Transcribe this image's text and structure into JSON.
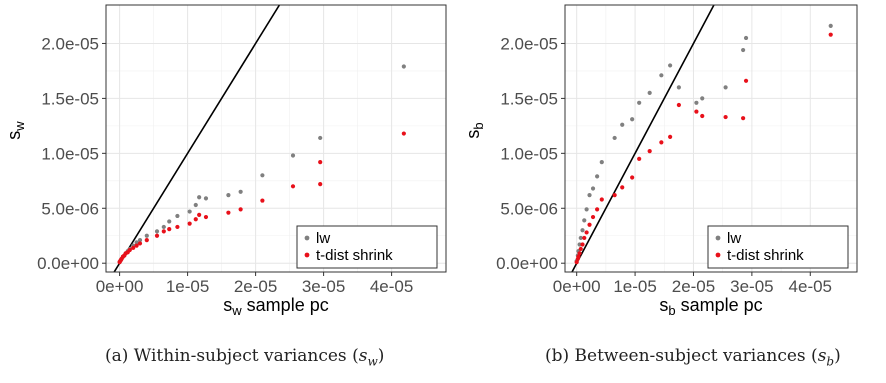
{
  "chart_data": [
    {
      "type": "scatter",
      "xlabel": "s_w sample pc",
      "ylabel": "s_w",
      "xlabel_sub": "w",
      "ylabel_sub": "w",
      "xlabel_main": "s",
      "xlabel_rest": " sample pc",
      "ylabel_main": "s",
      "xlim": [
        -2e-06,
        4.8e-05
      ],
      "ylim": [
        -8e-07,
        2.35e-05
      ],
      "xticks": [
        0,
        1e-05,
        2e-05,
        3e-05,
        4e-05
      ],
      "xtick_labels": [
        "0e+00",
        "1e-05",
        "2e-05",
        "3e-05",
        "4e-05"
      ],
      "yticks": [
        0,
        5e-06,
        1e-05,
        1.5e-05,
        2e-05
      ],
      "ytick_labels": [
        "0.0e+00",
        "5.0e-06",
        "1.0e-05",
        "1.5e-05",
        "2.0e-05"
      ],
      "grid": true,
      "legend_position": "bottom-right",
      "reference_line": "y = x",
      "caption": "(a) Within-subject variances (s_w)",
      "caption_text": "(a) Within-subject variances (",
      "caption_var": "s",
      "caption_sub": "w",
      "caption_close": ")",
      "series": [
        {
          "name": "lw",
          "color": "#808080",
          "x": [
            0,
            1e-07,
            2e-07,
            3e-07,
            5e-07,
            7e-07,
            9e-07,
            1.2e-06,
            1.5e-06,
            2e-06,
            2.5e-06,
            3e-06,
            4e-06,
            5.5e-06,
            6.5e-06,
            7.3e-06,
            8.5e-06,
            1.03e-05,
            1.12e-05,
            1.17e-05,
            1.27e-05,
            1.6e-05,
            1.78e-05,
            2.1e-05,
            2.55e-05,
            2.95e-05,
            4.18e-05
          ],
          "y": [
            1e-07,
            2e-07,
            3e-07,
            4e-07,
            6e-07,
            7e-07,
            9e-07,
            1.1e-06,
            1.3e-06,
            1.6e-06,
            1.9e-06,
            2.1e-06,
            2.5e-06,
            2.9e-06,
            3.3e-06,
            3.8e-06,
            4.3e-06,
            4.7e-06,
            5.3e-06,
            6e-06,
            5.9e-06,
            6.2e-06,
            6.5e-06,
            8e-06,
            9.8e-06,
            1.14e-05,
            1.79e-05
          ]
        },
        {
          "name": "t-dist shrink",
          "color": "#e8101a",
          "x": [
            0,
            1e-07,
            2e-07,
            3e-07,
            5e-07,
            7e-07,
            9e-07,
            1.2e-06,
            1.5e-06,
            2e-06,
            2.5e-06,
            3e-06,
            4e-06,
            5.5e-06,
            6.5e-06,
            7.3e-06,
            8.5e-06,
            1.03e-05,
            1.12e-05,
            1.17e-05,
            1.27e-05,
            1.6e-05,
            1.78e-05,
            2.1e-05,
            2.55e-05,
            2.95e-05,
            2.95e-05,
            4.18e-05
          ],
          "y": [
            1e-07,
            2e-07,
            3e-07,
            4e-07,
            6e-07,
            7e-07,
            9e-07,
            1e-06,
            1.2e-06,
            1.4e-06,
            1.6e-06,
            1.8e-06,
            2.1e-06,
            2.5e-06,
            2.9e-06,
            3.1e-06,
            3.3e-06,
            3.6e-06,
            4e-06,
            4.4e-06,
            4.2e-06,
            4.6e-06,
            4.9e-06,
            5.7e-06,
            7e-06,
            7.2e-06,
            9.2e-06,
            1.18e-05
          ]
        }
      ]
    },
    {
      "type": "scatter",
      "xlabel": "s_b sample pc",
      "ylabel": "s_b",
      "xlabel_sub": "b",
      "ylabel_sub": "b",
      "xlabel_main": "s",
      "xlabel_rest": " sample pc",
      "ylabel_main": "s",
      "xlim": [
        -2e-06,
        4.8e-05
      ],
      "ylim": [
        -8e-07,
        2.35e-05
      ],
      "xticks": [
        0,
        1e-05,
        2e-05,
        3e-05,
        4e-05
      ],
      "xtick_labels": [
        "0e+00",
        "1e-05",
        "2e-05",
        "3e-05",
        "4e-05"
      ],
      "yticks": [
        0,
        5e-06,
        1e-05,
        1.5e-05,
        2e-05
      ],
      "ytick_labels": [
        "0.0e+00",
        "5.0e-06",
        "1.0e-05",
        "1.5e-05",
        "2.0e-05"
      ],
      "grid": true,
      "legend_position": "bottom-right",
      "reference_line": "y = x",
      "caption": "(b) Between-subject variances (s_b)",
      "caption_text": "(b) Between-subject variances (",
      "caption_var": "s",
      "caption_sub": "b",
      "caption_close": ")",
      "series": [
        {
          "name": "lw",
          "color": "#808080",
          "x": [
            0,
            2e-07,
            3e-07,
            5e-07,
            7e-07,
            1e-06,
            1.3e-06,
            1.7e-06,
            2.2e-06,
            2.8e-06,
            3.5e-06,
            4.3e-06,
            6.5e-06,
            7.8e-06,
            9.5e-06,
            1.07e-05,
            1.25e-05,
            1.45e-05,
            1.6e-05,
            1.75e-05,
            2.05e-05,
            2.15e-05,
            2.55e-05,
            2.85e-05,
            2.9e-05,
            4.35e-05
          ],
          "y": [
            2e-07,
            7e-07,
            1.1e-06,
            1.7e-06,
            2.3e-06,
            3e-06,
            3.9e-06,
            4.9e-06,
            6.2e-06,
            6.8e-06,
            7.9e-06,
            9.2e-06,
            1.14e-05,
            1.26e-05,
            1.31e-05,
            1.46e-05,
            1.55e-05,
            1.71e-05,
            1.8e-05,
            1.6e-05,
            1.46e-05,
            1.5e-05,
            1.6e-05,
            1.94e-05,
            2.05e-05,
            2.16e-05
          ]
        },
        {
          "name": "t-dist shrink",
          "color": "#e8101a",
          "x": [
            0,
            2e-07,
            3e-07,
            5e-07,
            7e-07,
            1e-06,
            1.3e-06,
            1.7e-06,
            2.2e-06,
            2.8e-06,
            3.5e-06,
            4.3e-06,
            6.5e-06,
            7.8e-06,
            9.5e-06,
            1.07e-05,
            1.25e-05,
            1.45e-05,
            1.6e-05,
            1.75e-05,
            2.05e-05,
            2.15e-05,
            2.55e-05,
            2.85e-05,
            2.9e-05,
            4.35e-05
          ],
          "y": [
            1e-07,
            4e-07,
            6e-07,
            9e-07,
            1.3e-06,
            1.7e-06,
            2.3e-06,
            2.8e-06,
            3.5e-06,
            4.2e-06,
            4.9e-06,
            5.8e-06,
            6.2e-06,
            6.9e-06,
            7.8e-06,
            9.5e-06,
            1.02e-05,
            1.1e-05,
            1.15e-05,
            1.44e-05,
            1.38e-05,
            1.34e-05,
            1.33e-05,
            1.32e-05,
            1.66e-05,
            2.08e-05
          ]
        }
      ]
    }
  ]
}
